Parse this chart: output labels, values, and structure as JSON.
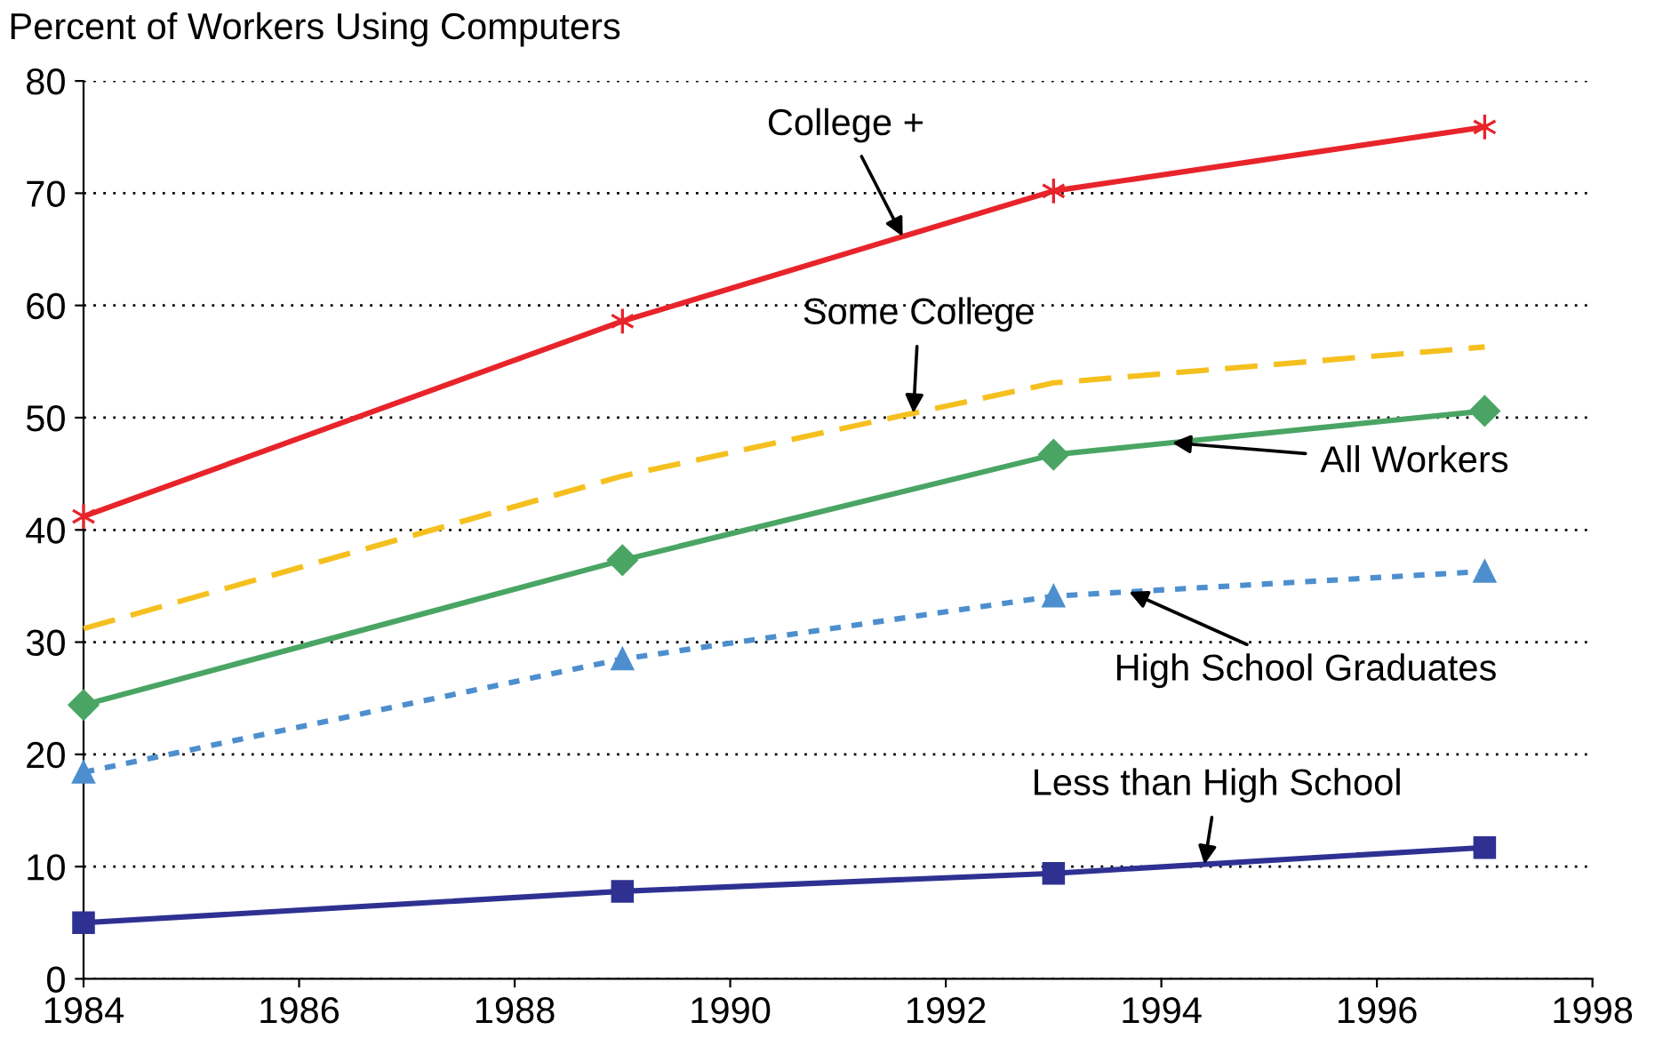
{
  "chart_data": {
    "type": "line",
    "ylabel": "Percent of Workers Using Computers",
    "x": [
      1984,
      1989,
      1993,
      1997
    ],
    "series": [
      {
        "color": "#e8242b",
        "marker": "cross",
        "line_style": "solid",
        "values": [
          41.2,
          58.6,
          70.2,
          75.9
        ]
      },
      {
        "color": "#f5c01f",
        "marker": "none",
        "line_style": "dashed",
        "values": [
          31.2,
          44.8,
          53.1,
          56.3
        ]
      },
      {
        "color": "#4aa564",
        "marker": "diamond",
        "line_style": "solid",
        "values": [
          24.4,
          37.3,
          46.7,
          50.6
        ]
      },
      {
        "color": "#4d8fce",
        "marker": "triangle",
        "line_style": "dotted",
        "values": [
          18.4,
          28.5,
          34.1,
          36.3
        ]
      },
      {
        "color": "#2e3192",
        "marker": "square",
        "line_style": "solid",
        "values": [
          5.0,
          7.8,
          9.4,
          11.7
        ]
      }
    ],
    "annotations": [
      {
        "text": "College +",
        "x": 1991.6,
        "y": 66.14
      },
      {
        "text": "Some College",
        "x": 1991.7,
        "y": 50.4
      },
      {
        "text": "All Workers",
        "x": 1994.1,
        "y": 47.77
      },
      {
        "text": "High School Graduates",
        "x": 1993.7,
        "y": 34.49
      },
      {
        "text": "Less than High School",
        "x": 1994.4,
        "y": 10.2
      }
    ],
    "xlim": [
      1984,
      1998
    ],
    "xticks": [
      1984,
      1986,
      1988,
      1990,
      1992,
      1994,
      1996,
      1998
    ],
    "ylim": [
      0,
      80
    ],
    "yticks": [
      0,
      10,
      20,
      30,
      40,
      50,
      60,
      70,
      80
    ],
    "grid": "y",
    "legend": false
  }
}
